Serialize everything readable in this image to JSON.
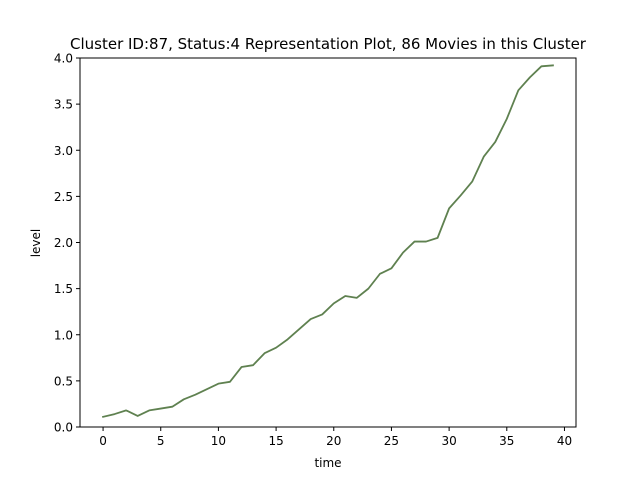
{
  "chart_data": {
    "type": "line",
    "title": "Cluster ID:87, Status:4 Representation Plot, 86 Movies in this Cluster",
    "xlabel": "time",
    "ylabel": "level",
    "xlim": [
      -2.0,
      41.0
    ],
    "ylim": [
      0.0,
      4.0
    ],
    "xticks": [
      0,
      5,
      10,
      15,
      20,
      25,
      30,
      35,
      40
    ],
    "xtick_labels": [
      "0",
      "5",
      "10",
      "15",
      "20",
      "25",
      "30",
      "35",
      "40"
    ],
    "yticks": [
      0.0,
      0.5,
      1.0,
      1.5,
      2.0,
      2.5,
      3.0,
      3.5,
      4.0
    ],
    "ytick_labels": [
      "0.0",
      "0.5",
      "1.0",
      "1.5",
      "2.0",
      "2.5",
      "3.0",
      "3.5",
      "4.0"
    ],
    "grid": false,
    "legend": "none",
    "series": [
      {
        "color": "#5f8150",
        "x": [
          0,
          1,
          2,
          3,
          4,
          5,
          6,
          7,
          8,
          9,
          10,
          11,
          12,
          13,
          14,
          15,
          16,
          17,
          18,
          19,
          20,
          21,
          22,
          23,
          24,
          25,
          26,
          27,
          28,
          29,
          30,
          31,
          32,
          33,
          34,
          35,
          36,
          37,
          38,
          39
        ],
        "y": [
          0.11,
          0.14,
          0.18,
          0.12,
          0.18,
          0.2,
          0.22,
          0.3,
          0.35,
          0.41,
          0.47,
          0.49,
          0.65,
          0.67,
          0.8,
          0.86,
          0.95,
          1.06,
          1.17,
          1.22,
          1.34,
          1.42,
          1.4,
          1.5,
          1.66,
          1.72,
          1.89,
          2.01,
          2.01,
          2.05,
          2.37,
          2.51,
          2.66,
          2.93,
          3.09,
          3.34,
          3.65,
          3.79,
          3.91,
          3.92
        ]
      }
    ]
  }
}
